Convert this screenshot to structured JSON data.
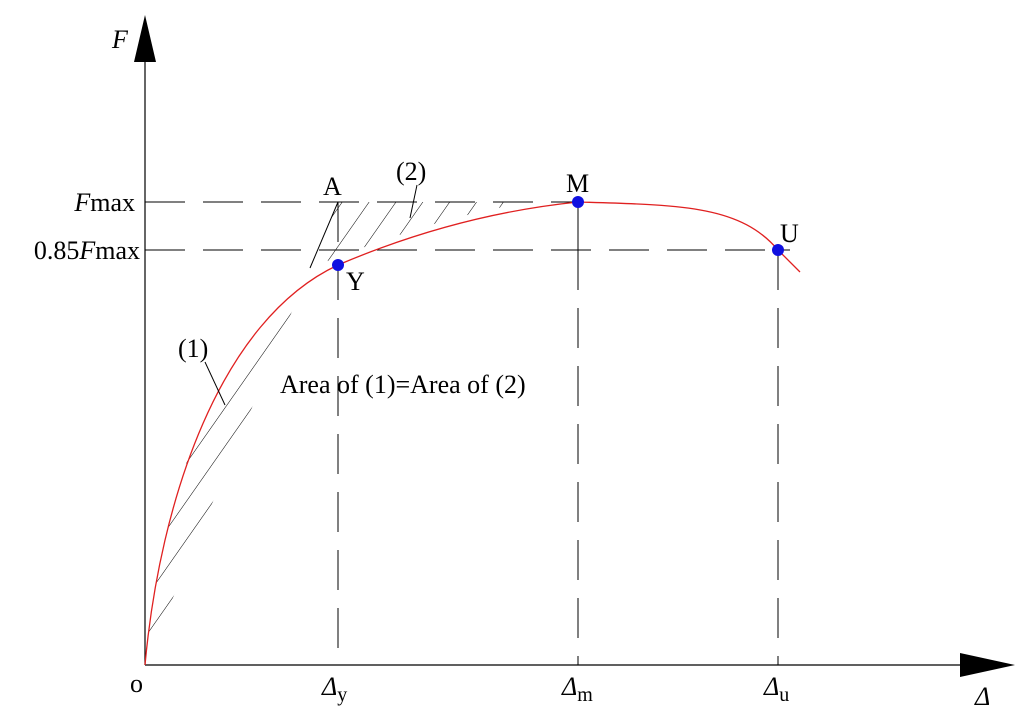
{
  "axes": {
    "y_label": "F",
    "x_label": "Δ",
    "origin": "o"
  },
  "levels": {
    "fmax": {
      "symbol": "F",
      "text": "max"
    },
    "f085": {
      "factor": "0.85",
      "symbol": "F",
      "text": "max"
    }
  },
  "points": {
    "a": "A",
    "m": "M",
    "u": "U",
    "y": "Y"
  },
  "regions": {
    "one": "(1)",
    "two": "(2)",
    "note": "Area of (1)=Area of (2)"
  },
  "x_marks": {
    "dy": {
      "symbol": "Δ",
      "subscript": "y"
    },
    "dm": {
      "symbol": "Δ",
      "subscript": "m"
    },
    "du": {
      "symbol": "Δ",
      "subscript": "u"
    }
  }
}
